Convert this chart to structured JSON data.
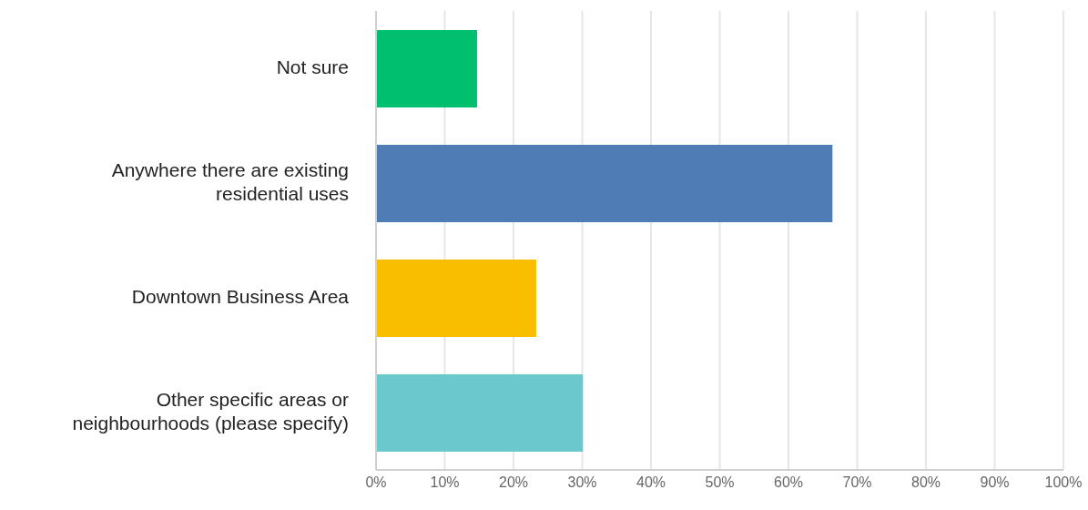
{
  "chart_data": {
    "type": "bar",
    "orientation": "horizontal",
    "categories": [
      "Not sure",
      "Anywhere there are existing residential uses",
      "Downtown Business Area",
      "Other specific areas or neighbourhoods (please specify)"
    ],
    "values": [
      14.7,
      66.4,
      23.3,
      30.1
    ],
    "colors": [
      "#00bf6f",
      "#507cb6",
      "#f9be00",
      "#6bc8cd"
    ],
    "xlim": [
      0,
      100
    ],
    "xticks": [
      {
        "value": 0,
        "label": "0%"
      },
      {
        "value": 10,
        "label": "10%"
      },
      {
        "value": 20,
        "label": "20%"
      },
      {
        "value": 30,
        "label": "30%"
      },
      {
        "value": 40,
        "label": "40%"
      },
      {
        "value": 50,
        "label": "50%"
      },
      {
        "value": 60,
        "label": "60%"
      },
      {
        "value": 70,
        "label": "70%"
      },
      {
        "value": 80,
        "label": "80%"
      },
      {
        "value": 90,
        "label": "90%"
      },
      {
        "value": 100,
        "label": "100%"
      }
    ],
    "grid": "x",
    "legend": false
  }
}
